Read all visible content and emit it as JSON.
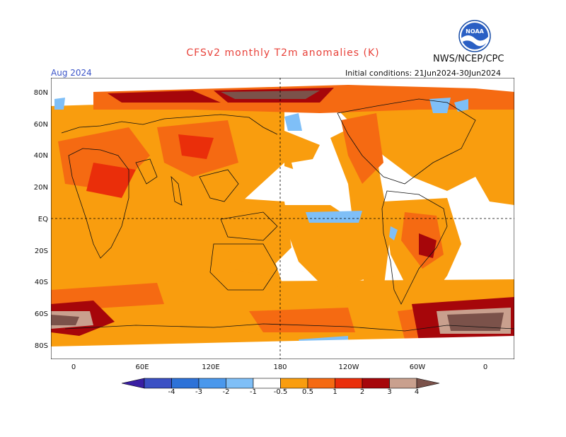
{
  "header": {
    "title": "CFSv2 monthly T2m anomalies (K)",
    "org": "NWS/NCEP/CPC",
    "month": "Aug 2024",
    "initial_conditions": "Initial conditions: 21Jun2024-30Jun2024",
    "logo_text": "NOAA"
  },
  "map": {
    "lat_labels": [
      "80N",
      "60N",
      "40N",
      "20N",
      "EQ",
      "20S",
      "40S",
      "60S",
      "80S"
    ],
    "lon_labels": [
      "0",
      "60E",
      "120E",
      "180",
      "120W",
      "60W",
      "0"
    ],
    "ocean_color": "#ffffff"
  },
  "colorbar": {
    "labels": [
      "-4",
      "-3",
      "-2",
      "-1",
      "-0.5",
      "0.5",
      "1",
      "2",
      "3",
      "4"
    ],
    "colors": [
      "#3a1fa3",
      "#3b50c4",
      "#2d72d8",
      "#4a98ec",
      "#7fbff7",
      "#ffffff",
      "#f99d0e",
      "#f56a12",
      "#ea2e0a",
      "#a6060a",
      "#c9a08e",
      "#7b524a"
    ]
  }
}
